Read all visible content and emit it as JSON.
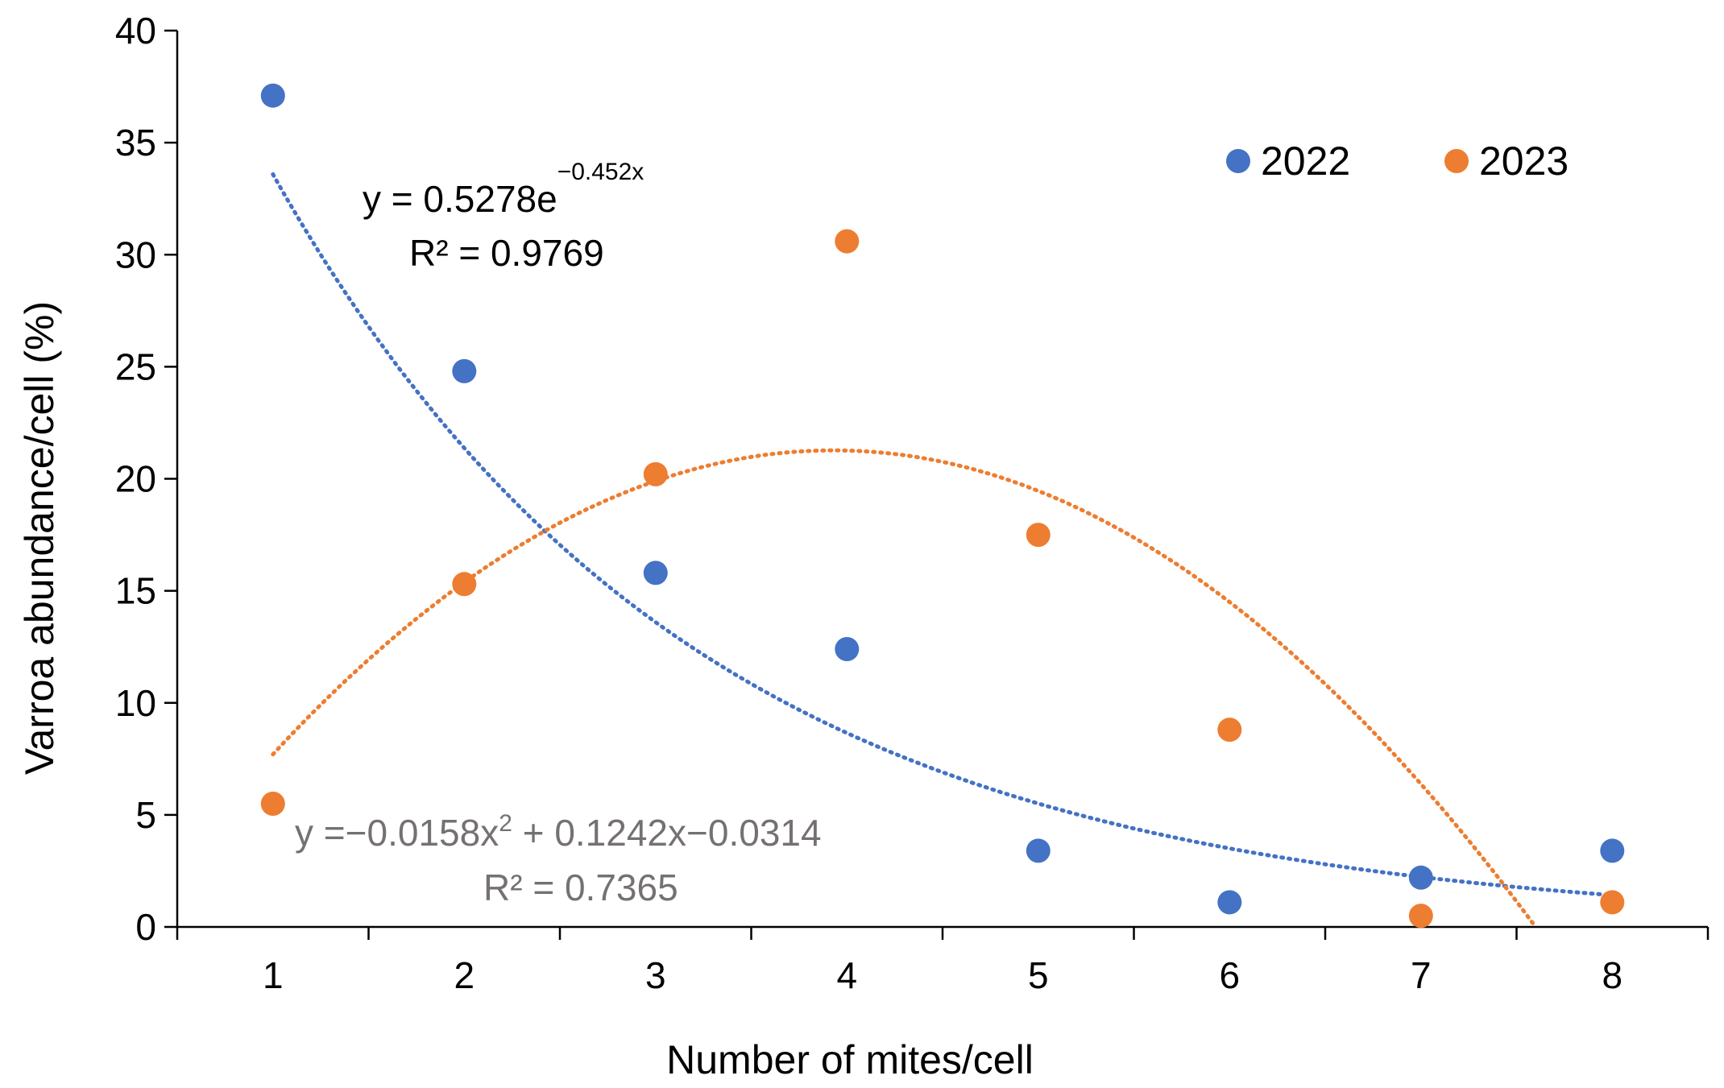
{
  "chart_data": {
    "type": "scatter",
    "title": "",
    "xlabel": "Number of mites/cell",
    "ylabel": "Varroa abundance/cell (%)",
    "xlim": [
      0.5,
      8.5
    ],
    "ylim": [
      0,
      40
    ],
    "x_ticks": [
      1,
      2,
      3,
      4,
      5,
      6,
      7,
      8
    ],
    "x_tick_labels": [
      "1",
      "2",
      "3",
      "4",
      "5",
      "6",
      "7",
      "8"
    ],
    "y_ticks": [
      0,
      5,
      10,
      15,
      20,
      25,
      30,
      35,
      40
    ],
    "y_tick_labels": [
      "0",
      "5",
      "10",
      "15",
      "20",
      "25",
      "30",
      "35",
      "40"
    ],
    "grid": false,
    "legend_position": "top-right",
    "series": [
      {
        "name": "2022",
        "color": "#4472C4",
        "x": [
          1,
          2,
          3,
          4,
          5,
          6,
          7,
          8
        ],
        "y": [
          37.1,
          24.8,
          15.8,
          12.4,
          3.4,
          1.1,
          2.2,
          3.4
        ],
        "trendline": {
          "type": "exponential",
          "equation_prefix": "y = 0.5278e",
          "equation_exponent": "−0.452x",
          "r_squared": "R² = 0.9769",
          "a": 52.78,
          "b": -0.452
        }
      },
      {
        "name": "2023",
        "color": "#ED7D31",
        "x": [
          1,
          2,
          3,
          4,
          5,
          6,
          7,
          8
        ],
        "y": [
          5.5,
          15.3,
          20.2,
          30.6,
          17.5,
          8.8,
          0.5,
          1.1
        ],
        "trendline": {
          "type": "polynomial",
          "equation_prefix": "y =−0.0158x",
          "equation_exponent": "2",
          "equation_suffix": " + 0.1242x−0.0314",
          "r_squared": "R² = 0.7365",
          "coefficients_percent": [
            -1.58,
            12.42,
            -3.14
          ]
        }
      }
    ]
  }
}
